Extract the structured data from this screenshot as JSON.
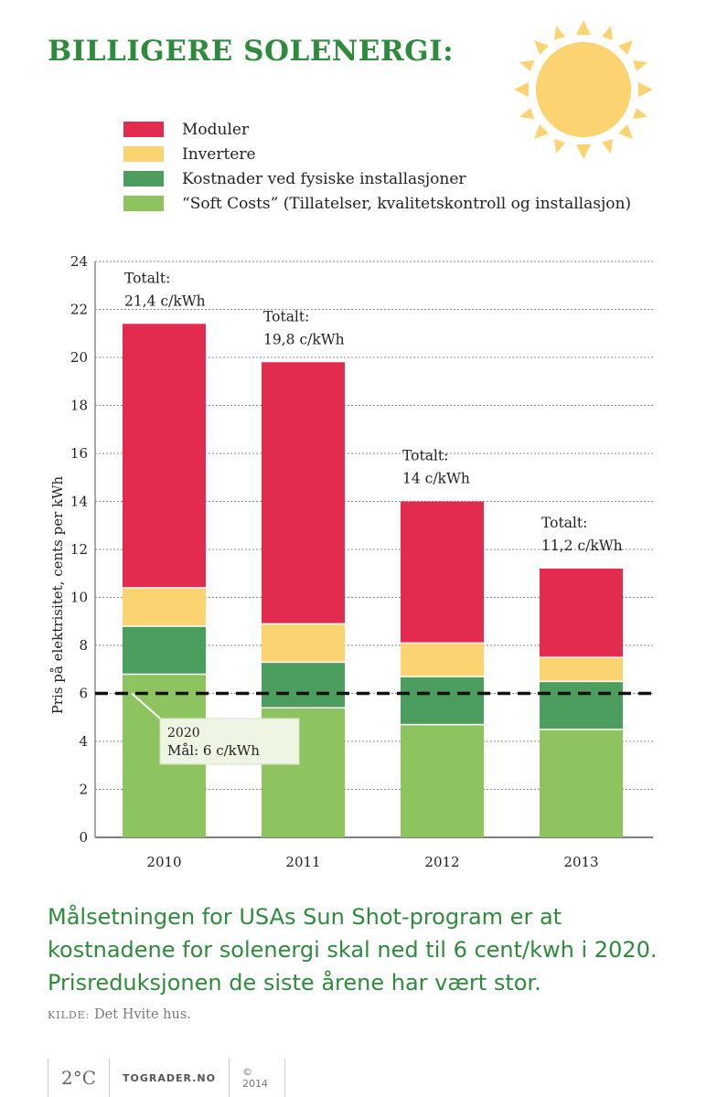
{
  "title": "BILLIGERE SOLENERGI:",
  "legend": [
    {
      "label": "Moduler",
      "color": "#e32b4f"
    },
    {
      "label": "Invertere",
      "color": "#fbd370"
    },
    {
      "label": "Kostnader ved fysiske installasjoner",
      "color": "#4b9e5e"
    },
    {
      "label": "“Soft Costs” (Tillatelser, kvalitetskontroll og installasjon)",
      "color": "#8dc460"
    }
  ],
  "chart_data": {
    "type": "bar",
    "stacked": true,
    "categories": [
      "2010",
      "2011",
      "2012",
      "2013"
    ],
    "series": [
      {
        "name": "“Soft Costs” (Tillatelser, kvalitetskontroll og installasjon)",
        "color": "#8dc460",
        "values": [
          6.8,
          5.4,
          4.7,
          4.5
        ]
      },
      {
        "name": "Kostnader ved fysiske installasjoner",
        "color": "#4b9e5e",
        "values": [
          2.0,
          1.9,
          2.0,
          2.0
        ]
      },
      {
        "name": "Invertere",
        "color": "#fbd370",
        "values": [
          1.6,
          1.6,
          1.4,
          1.0
        ]
      },
      {
        "name": "Moduler",
        "color": "#e32b4f",
        "values": [
          11.0,
          10.9,
          5.9,
          3.7
        ]
      }
    ],
    "totals": [
      {
        "line1": "Totalt:",
        "line2": "21,4 c/kWh",
        "value": 21.4
      },
      {
        "line1": "Totalt:",
        "line2": "19,8 c/kWh",
        "value": 19.8
      },
      {
        "line1": "Totalt:",
        "line2": "14 c/kWh",
        "value": 14.0
      },
      {
        "line1": "Totalt:",
        "line2": "11,2 c/kWh",
        "value": 11.2
      }
    ],
    "ylabel": "Pris på elektrisitet, cents per kWh",
    "ylim": [
      0,
      24
    ],
    "yticks": [
      0,
      2,
      4,
      6,
      8,
      10,
      12,
      14,
      16,
      18,
      20,
      22,
      24
    ],
    "target": {
      "value": 6,
      "line1": "2020",
      "line2": "Mål: 6 c/kWh"
    }
  },
  "caption": "Målsetningen for USAs Sun Shot-program er at kostnadene for solenergi skal ned til 6 cent/kwh i 2020. Prisreduksjonen de siste årene har vært stor.",
  "source": {
    "label": "KILDE:",
    "text": "Det Hvite hus."
  },
  "footer": {
    "logo": "2°C",
    "site": "TOGRADER.NO",
    "copyright": "© 2014"
  }
}
